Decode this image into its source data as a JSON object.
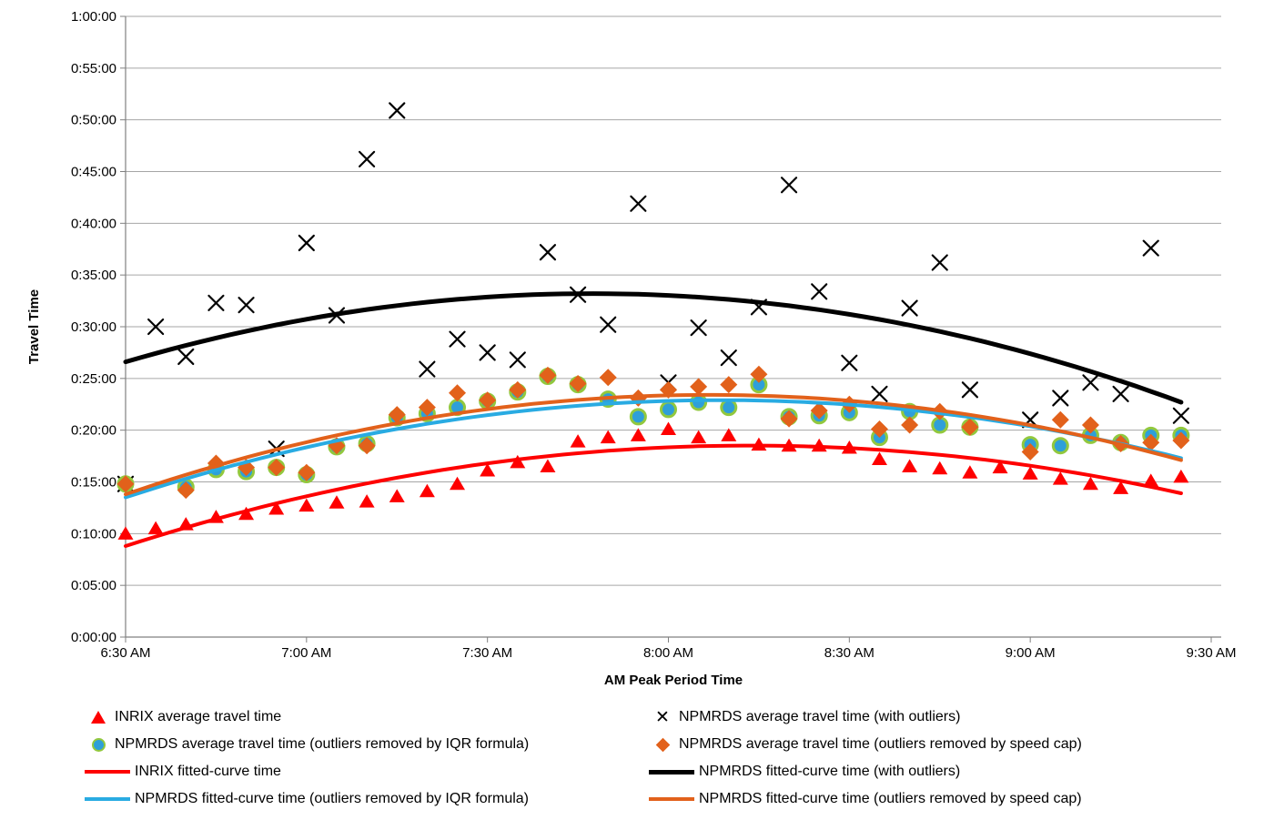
{
  "chart_data": {
    "type": "scatter",
    "xlabel": "AM Peak Period Time",
    "ylabel": "Travel Time",
    "x_tick_labels": [
      "6:30 AM",
      "7:00 AM",
      "7:30 AM",
      "8:00 AM",
      "8:30 AM",
      "9:00 AM",
      "9:30 AM"
    ],
    "x_tick_minutes": [
      0,
      30,
      60,
      90,
      120,
      150,
      180
    ],
    "y_tick_labels": [
      "0:00:00",
      "0:05:00",
      "0:10:00",
      "0:15:00",
      "0:20:00",
      "0:25:00",
      "0:30:00",
      "0:35:00",
      "0:40:00",
      "0:45:00",
      "0:50:00",
      "0:55:00",
      "1:00:00"
    ],
    "y_tick_minutes": [
      0,
      5,
      10,
      15,
      20,
      25,
      30,
      35,
      40,
      45,
      50,
      55,
      60
    ],
    "ylim_minutes": [
      0,
      60
    ],
    "xlim_minutes": [
      0,
      182
    ],
    "grid": "horizontal-only",
    "legend_position": "bottom-two-columns",
    "point_interval_minutes": 5,
    "point_times": [
      "6:30 AM",
      "6:35 AM",
      "6:40 AM",
      "6:45 AM",
      "6:50 AM",
      "6:55 AM",
      "7:00 AM",
      "7:05 AM",
      "7:10 AM",
      "7:15 AM",
      "7:20 AM",
      "7:25 AM",
      "7:30 AM",
      "7:35 AM",
      "7:40 AM",
      "7:45 AM",
      "7:50 AM",
      "7:55 AM",
      "8:00 AM",
      "8:05 AM",
      "8:10 AM",
      "8:15 AM",
      "8:20 AM",
      "8:25 AM",
      "8:30 AM",
      "8:35 AM",
      "8:40 AM",
      "8:45 AM",
      "8:50 AM",
      "8:55 AM",
      "9:00 AM",
      "9:05 AM",
      "9:10 AM",
      "9:15 AM",
      "9:20 AM",
      "9:25 AM"
    ],
    "value_unit": "decimal minutes of travel time",
    "series": [
      {
        "id": "inrix_avg",
        "name": "INRIX average travel time",
        "marker": "triangle",
        "color": "#FE0000",
        "values": [
          10.0,
          10.5,
          10.9,
          11.6,
          11.9,
          12.4,
          12.7,
          13.0,
          13.1,
          13.6,
          14.1,
          14.8,
          16.1,
          16.9,
          16.5,
          18.9,
          19.3,
          19.5,
          20.1,
          19.3,
          19.5,
          18.6,
          18.5,
          18.5,
          18.3,
          17.2,
          16.5,
          16.3,
          15.9,
          16.4,
          15.8,
          15.3,
          14.8,
          14.4,
          15.1,
          15.5
        ]
      },
      {
        "id": "npmrds_with_outliers",
        "name": "NPMRDS average travel time (with outliers)",
        "marker": "x",
        "color": "#000000",
        "values": [
          14.8,
          30.0,
          27.1,
          32.3,
          32.1,
          18.2,
          38.1,
          31.1,
          46.2,
          50.9,
          25.9,
          28.8,
          27.5,
          26.8,
          37.2,
          33.1,
          30.2,
          41.9,
          24.6,
          29.9,
          27.0,
          31.9,
          43.7,
          33.4,
          26.5,
          23.5,
          31.8,
          36.2,
          23.9,
          null,
          21.0,
          23.1,
          24.6,
          23.5,
          37.6,
          21.4
        ]
      },
      {
        "id": "npmrds_iqr",
        "name": "NPMRDS average travel time (outliers removed by IQR formula)",
        "marker": "circle",
        "color": "#2E9FD9",
        "edge_color": "#92C83E",
        "values": [
          14.8,
          null,
          14.5,
          16.2,
          16.0,
          16.4,
          15.7,
          18.4,
          18.7,
          21.2,
          21.6,
          22.2,
          22.8,
          23.7,
          25.2,
          24.4,
          23.0,
          21.3,
          22.0,
          22.7,
          22.2,
          24.4,
          21.3,
          21.4,
          21.7,
          19.3,
          21.8,
          20.5,
          20.3,
          null,
          18.6,
          18.5,
          19.5,
          18.8,
          19.5,
          19.5
        ]
      },
      {
        "id": "npmrds_speed_cap",
        "name": "NPMRDS average travel time (outliers removed by speed cap)",
        "marker": "diamond",
        "color": "#E2611B",
        "values": [
          14.8,
          null,
          14.2,
          16.8,
          16.4,
          16.4,
          15.9,
          18.5,
          18.5,
          21.5,
          22.2,
          23.6,
          22.9,
          23.9,
          25.3,
          24.5,
          25.1,
          23.1,
          23.9,
          24.2,
          24.4,
          25.4,
          21.1,
          21.9,
          22.5,
          20.1,
          20.5,
          21.8,
          20.3,
          null,
          17.9,
          21.0,
          20.5,
          18.7,
          18.8,
          19.0
        ]
      }
    ],
    "curves": [
      {
        "id": "inrix_fit",
        "name": "INRIX fitted-curve time",
        "color": "#FE0000",
        "width": 4,
        "quadratic_coef": {
          "a": -0.0009048,
          "b": 0.18748,
          "c": 8.8
        },
        "t_range_minutes": [
          0,
          175
        ],
        "anchor_points": {
          "start": 8.8,
          "peak": 18.5,
          "end": 13.9
        }
      },
      {
        "id": "npmrds_fit_with_outliers",
        "name": "NPMRDS fitted-curve time (with outliers)",
        "color": "#000000",
        "width": 5,
        "quadratic_coef": {
          "a": -0.001102,
          "b": 0.17057,
          "c": 26.6
        },
        "t_range_minutes": [
          0,
          175
        ],
        "anchor_points": {
          "start": 26.6,
          "peak": 33.2,
          "end": 22.7
        }
      },
      {
        "id": "npmrds_fit_iqr",
        "name": "NPMRDS fitted-curve time (outliers removed by IQR formula)",
        "color": "#29ABE2",
        "width": 4,
        "quadratic_coef": {
          "a": -0.0009638,
          "b": 0.19038,
          "c": 13.5
        },
        "t_range_minutes": [
          0,
          175
        ],
        "anchor_points": {
          "start": 13.5,
          "peak": 22.9,
          "end": 17.3
        }
      },
      {
        "id": "npmrds_fit_speed_cap",
        "name": "NPMRDS fitted-curve time (outliers removed by speed cap)",
        "color": "#E2611B",
        "width": 4,
        "quadratic_coef": {
          "a": -0.0010286,
          "b": 0.19886,
          "c": 13.8
        },
        "t_range_minutes": [
          0,
          175
        ],
        "anchor_points": {
          "start": 13.8,
          "peak": 23.4,
          "end": 17.1
        }
      }
    ],
    "axis_colors": {
      "gridline": "#A6A6A6",
      "axis_line": "#808080",
      "tick_text": "#000000"
    }
  }
}
